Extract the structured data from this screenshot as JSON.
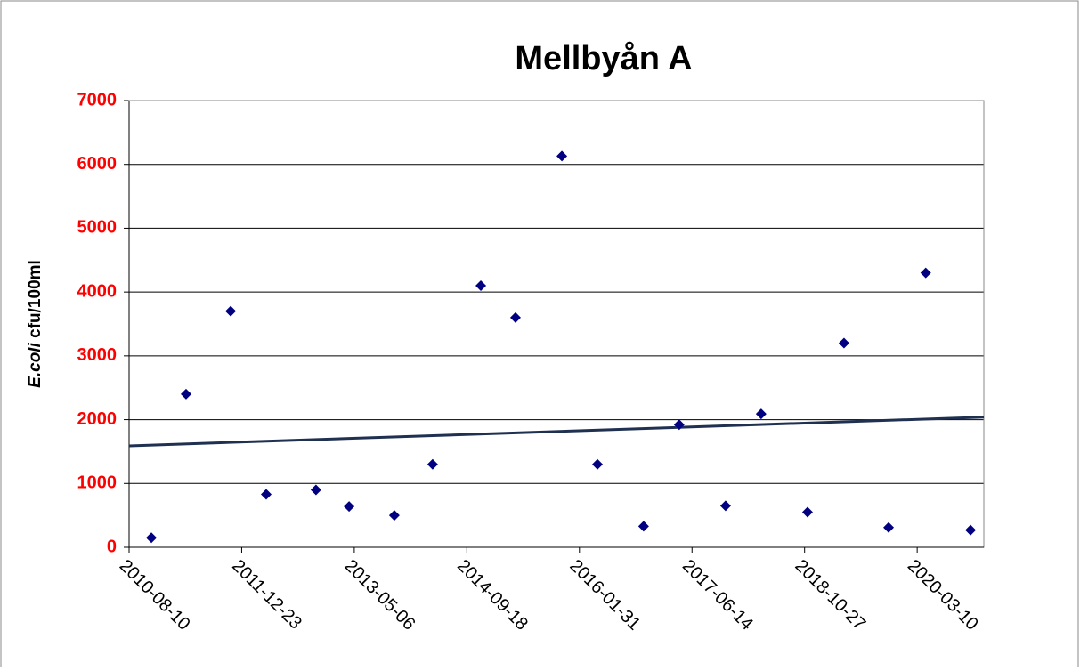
{
  "chart_data": {
    "type": "scatter",
    "title": "Mellbyån A",
    "ylabel_italic": "E.coli",
    "ylabel": " cfu/100ml",
    "x": [
      "2010-11-17",
      "2011-04-20",
      "2011-11-04",
      "2012-04-10",
      "2012-11-17",
      "2013-04-13",
      "2013-10-31",
      "2014-04-19",
      "2014-11-19",
      "2015-04-22",
      "2015-11-14",
      "2016-04-20",
      "2016-11-11",
      "2017-04-18",
      "2017-11-10",
      "2018-04-17",
      "2018-11-09",
      "2019-04-20",
      "2019-11-04",
      "2020-04-17",
      "2020-11-02"
    ],
    "values": [
      150,
      2400,
      3700,
      830,
      900,
      640,
      500,
      1300,
      4100,
      3600,
      6130,
      1300,
      330,
      1920,
      650,
      2090,
      550,
      3200,
      310,
      4300,
      270
    ],
    "color": "#000080",
    "trendline": {
      "x": [
        "2010-08-10",
        "2020-12-31"
      ],
      "values": [
        1590,
        2040
      ],
      "color": "#1f3050"
    },
    "xlim": [
      "2010-08-10",
      "2020-12-31"
    ],
    "xticks": [
      "2010-08-10",
      "2011-12-23",
      "2013-05-06",
      "2014-09-18",
      "2016-01-31",
      "2017-06-14",
      "2018-10-27",
      "2020-03-10"
    ],
    "ylim": [
      0,
      7000
    ],
    "yticks": [
      0,
      1000,
      2000,
      3000,
      4000,
      5000,
      6000,
      7000
    ],
    "ytick_color": "#ff0000",
    "grid": true
  }
}
